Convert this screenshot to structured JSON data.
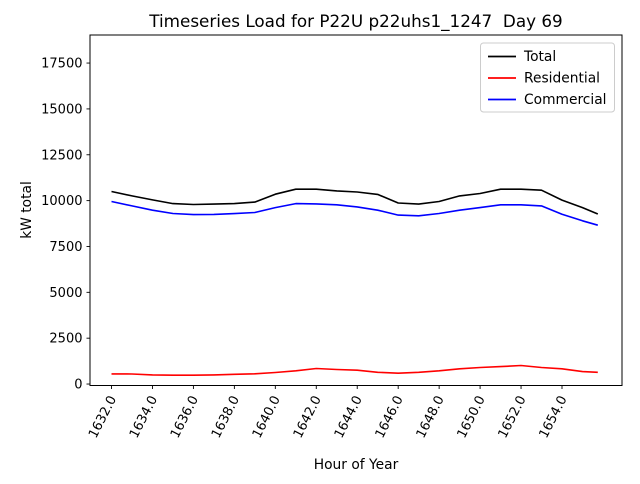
{
  "chart_data": {
    "type": "line",
    "title": "Timeseries Load for P22U p22uhs1_1247  Day 69",
    "xlabel": "Hour of Year",
    "ylabel": "kW total",
    "grid": false,
    "xlim": [
      1630.95,
      1656.93
    ],
    "ylim": [
      -80,
      19030
    ],
    "xticks": [
      1632,
      1634,
      1636,
      1638,
      1640,
      1642,
      1644,
      1646,
      1648,
      1650,
      1652,
      1654
    ],
    "xtick_labels": [
      "1632.0",
      "1634.0",
      "1636.0",
      "1638.0",
      "1640.0",
      "1642.0",
      "1644.0",
      "1646.0",
      "1648.0",
      "1650.0",
      "1652.0",
      "1654.0"
    ],
    "yticks": [
      0,
      2500,
      5000,
      7500,
      10000,
      12500,
      15000,
      17500
    ],
    "ytick_labels": [
      "0",
      "2500",
      "5000",
      "7500",
      "10000",
      "12500",
      "15000",
      "17500"
    ],
    "x": [
      1632,
      1633,
      1634,
      1635,
      1636,
      1637,
      1638,
      1639,
      1640,
      1641,
      1642,
      1643,
      1644,
      1645,
      1646,
      1647,
      1648,
      1649,
      1650,
      1651,
      1652,
      1653,
      1654,
      1655,
      1655.75
    ],
    "series": [
      {
        "name": "Total",
        "color": "#000000",
        "values": [
          10500,
          10260,
          10040,
          9840,
          9790,
          9810,
          9840,
          9920,
          10350,
          10620,
          10620,
          10530,
          10470,
          10340,
          9870,
          9810,
          9950,
          10260,
          10390,
          10620,
          10620,
          10570,
          10030,
          9620,
          9270
        ]
      },
      {
        "name": "Residential",
        "color": "#ff0000",
        "values": [
          555,
          545,
          500,
          480,
          480,
          500,
          530,
          560,
          630,
          720,
          845,
          790,
          755,
          640,
          590,
          640,
          720,
          830,
          900,
          950,
          1010,
          900,
          830,
          680,
          640
        ]
      },
      {
        "name": "Commercial",
        "color": "#0000ff",
        "values": [
          9950,
          9710,
          9480,
          9300,
          9240,
          9250,
          9290,
          9350,
          9620,
          9840,
          9820,
          9770,
          9660,
          9480,
          9210,
          9170,
          9300,
          9480,
          9620,
          9770,
          9770,
          9710,
          9260,
          8900,
          8660
        ]
      }
    ],
    "legend": {
      "position": "upper right"
    }
  }
}
